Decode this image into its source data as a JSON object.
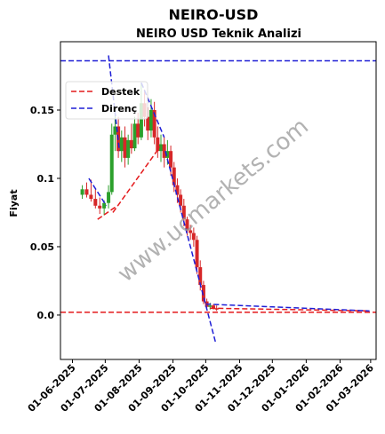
{
  "chart_data": {
    "type": "candlestick",
    "title": "NEIRO-USD",
    "subtitle": "NEIRO USD Teknik Analizi",
    "y_label": "Fiyat",
    "watermark": "www.ucmarkets.com",
    "x": [
      "2025-06-10",
      "2025-06-14",
      "2025-06-18",
      "2025-06-22",
      "2025-06-26",
      "2025-06-30",
      "2025-07-04",
      "2025-07-07",
      "2025-07-10",
      "2025-07-13",
      "2025-07-16",
      "2025-07-19",
      "2025-07-22",
      "2025-07-25",
      "2025-07-28",
      "2025-07-31",
      "2025-08-03",
      "2025-08-06",
      "2025-08-09",
      "2025-08-12",
      "2025-08-15",
      "2025-08-18",
      "2025-08-21",
      "2025-08-24",
      "2025-08-27",
      "2025-08-30",
      "2025-09-02",
      "2025-09-05",
      "2025-09-08",
      "2025-09-11",
      "2025-09-14",
      "2025-09-17",
      "2025-09-20",
      "2025-09-23",
      "2025-09-26",
      "2025-09-29",
      "2025-10-02",
      "2025-10-05",
      "2025-10-08",
      "2025-10-11"
    ],
    "open": [
      0.088,
      0.092,
      0.088,
      0.085,
      0.08,
      0.078,
      0.082,
      0.09,
      0.132,
      0.138,
      0.12,
      0.13,
      0.115,
      0.128,
      0.122,
      0.14,
      0.13,
      0.155,
      0.145,
      0.135,
      0.15,
      0.13,
      0.12,
      0.125,
      0.115,
      0.12,
      0.108,
      0.095,
      0.088,
      0.08,
      0.07,
      0.062,
      0.06,
      0.055,
      0.035,
      0.022,
      0.01,
      0.006,
      0.007,
      0.005
    ],
    "high": [
      0.095,
      0.097,
      0.099,
      0.092,
      0.086,
      0.084,
      0.095,
      0.14,
      0.15,
      0.145,
      0.135,
      0.138,
      0.132,
      0.14,
      0.145,
      0.148,
      0.17,
      0.165,
      0.152,
      0.158,
      0.156,
      0.138,
      0.132,
      0.13,
      0.128,
      0.124,
      0.112,
      0.1,
      0.092,
      0.085,
      0.072,
      0.066,
      0.064,
      0.058,
      0.04,
      0.025,
      0.012,
      0.009,
      0.008,
      0.007
    ],
    "low": [
      0.085,
      0.086,
      0.083,
      0.078,
      0.074,
      0.073,
      0.078,
      0.088,
      0.12,
      0.115,
      0.112,
      0.108,
      0.11,
      0.118,
      0.12,
      0.125,
      0.128,
      0.138,
      0.128,
      0.13,
      0.125,
      0.115,
      0.112,
      0.108,
      0.11,
      0.102,
      0.09,
      0.082,
      0.075,
      0.065,
      0.058,
      0.055,
      0.05,
      0.03,
      0.018,
      0.008,
      0.005,
      0.004,
      0.004,
      0.003
    ],
    "close": [
      0.092,
      0.088,
      0.085,
      0.08,
      0.078,
      0.082,
      0.09,
      0.132,
      0.138,
      0.12,
      0.13,
      0.115,
      0.128,
      0.122,
      0.14,
      0.13,
      0.155,
      0.145,
      0.135,
      0.15,
      0.13,
      0.12,
      0.125,
      0.115,
      0.12,
      0.108,
      0.095,
      0.088,
      0.08,
      0.07,
      0.062,
      0.06,
      0.055,
      0.035,
      0.022,
      0.01,
      0.006,
      0.007,
      0.005,
      0.004
    ],
    "up_color": "#2ca02c",
    "down_color": "#d62728",
    "series": [
      {
        "name": "Destek",
        "color": "#e41a1c",
        "hline": 0.002,
        "segments": [
          {
            "x": [
              "2025-06-24",
              "2025-07-12"
            ],
            "y": [
              0.07,
              0.08
            ]
          },
          {
            "x": [
              "2025-07-08",
              "2025-08-20"
            ],
            "y": [
              0.075,
              0.123
            ]
          },
          {
            "x": [
              "2025-10-05",
              "2026-02-28"
            ],
            "y": [
              0.005,
              0.003
            ]
          }
        ]
      },
      {
        "name": "Direnç",
        "color": "#1f1fd6",
        "hline": 0.186,
        "segments": [
          {
            "x": [
              "2025-06-16",
              "2025-07-02"
            ],
            "y": [
              0.1,
              0.08
            ]
          },
          {
            "x": [
              "2025-07-04",
              "2025-07-14"
            ],
            "y": [
              0.19,
              0.12
            ]
          },
          {
            "x": [
              "2025-08-03",
              "2025-08-24"
            ],
            "y": [
              0.17,
              0.13
            ]
          },
          {
            "x": [
              "2025-08-25",
              "2025-10-10"
            ],
            "y": [
              0.12,
              -0.02
            ]
          },
          {
            "x": [
              "2025-10-01",
              "2026-02-28"
            ],
            "y": [
              0.008,
              0.003
            ]
          }
        ]
      }
    ],
    "xlim": [
      "2025-05-21",
      "2026-03-06"
    ],
    "xticks": [
      {
        "value": "2025-06-01",
        "label": "01-06-2025"
      },
      {
        "value": "2025-07-01",
        "label": "01-07-2025"
      },
      {
        "value": "2025-08-01",
        "label": "01-08-2025"
      },
      {
        "value": "2025-09-01",
        "label": "01-09-2025"
      },
      {
        "value": "2025-10-01",
        "label": "01-10-2025"
      },
      {
        "value": "2025-11-01",
        "label": "01-11-2025"
      },
      {
        "value": "2025-12-01",
        "label": "01-12-2025"
      },
      {
        "value": "2026-01-01",
        "label": "01-01-2026"
      },
      {
        "value": "2026-02-01",
        "label": "01-02-2026"
      },
      {
        "value": "2026-03-01",
        "label": "01-03-2026"
      }
    ],
    "ylim": [
      -0.0325,
      0.2
    ],
    "yticks": [
      {
        "value": 0,
        "label": "0.0"
      },
      0.05,
      0.1,
      0.15
    ],
    "legend": "upper left"
  }
}
